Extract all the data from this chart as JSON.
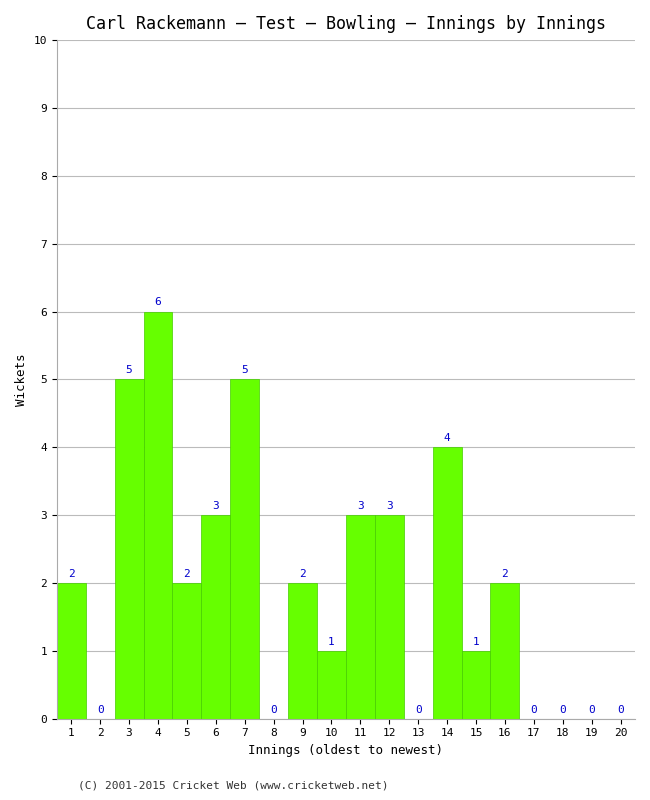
{
  "title": "Carl Rackemann – Test – Bowling – Innings by Innings",
  "xlabel": "Innings (oldest to newest)",
  "ylabel": "Wickets",
  "categories": [
    1,
    2,
    3,
    4,
    5,
    6,
    7,
    8,
    9,
    10,
    11,
    12,
    13,
    14,
    15,
    16,
    17,
    18,
    19,
    20
  ],
  "values": [
    2,
    0,
    5,
    6,
    2,
    3,
    5,
    0,
    2,
    1,
    3,
    3,
    0,
    4,
    1,
    2,
    0,
    0,
    0,
    0
  ],
  "bar_color": "#66ff00",
  "bar_edge_color": "#44cc00",
  "annotation_color": "#0000cc",
  "background_color": "#ffffff",
  "grid_color": "#bbbbbb",
  "ylim": [
    0,
    10
  ],
  "yticks": [
    0,
    1,
    2,
    3,
    4,
    5,
    6,
    7,
    8,
    9,
    10
  ],
  "title_fontsize": 12,
  "axis_label_fontsize": 9,
  "tick_fontsize": 8,
  "annotation_fontsize": 8,
  "footer": "(C) 2001-2015 Cricket Web (www.cricketweb.net)",
  "footer_fontsize": 8
}
